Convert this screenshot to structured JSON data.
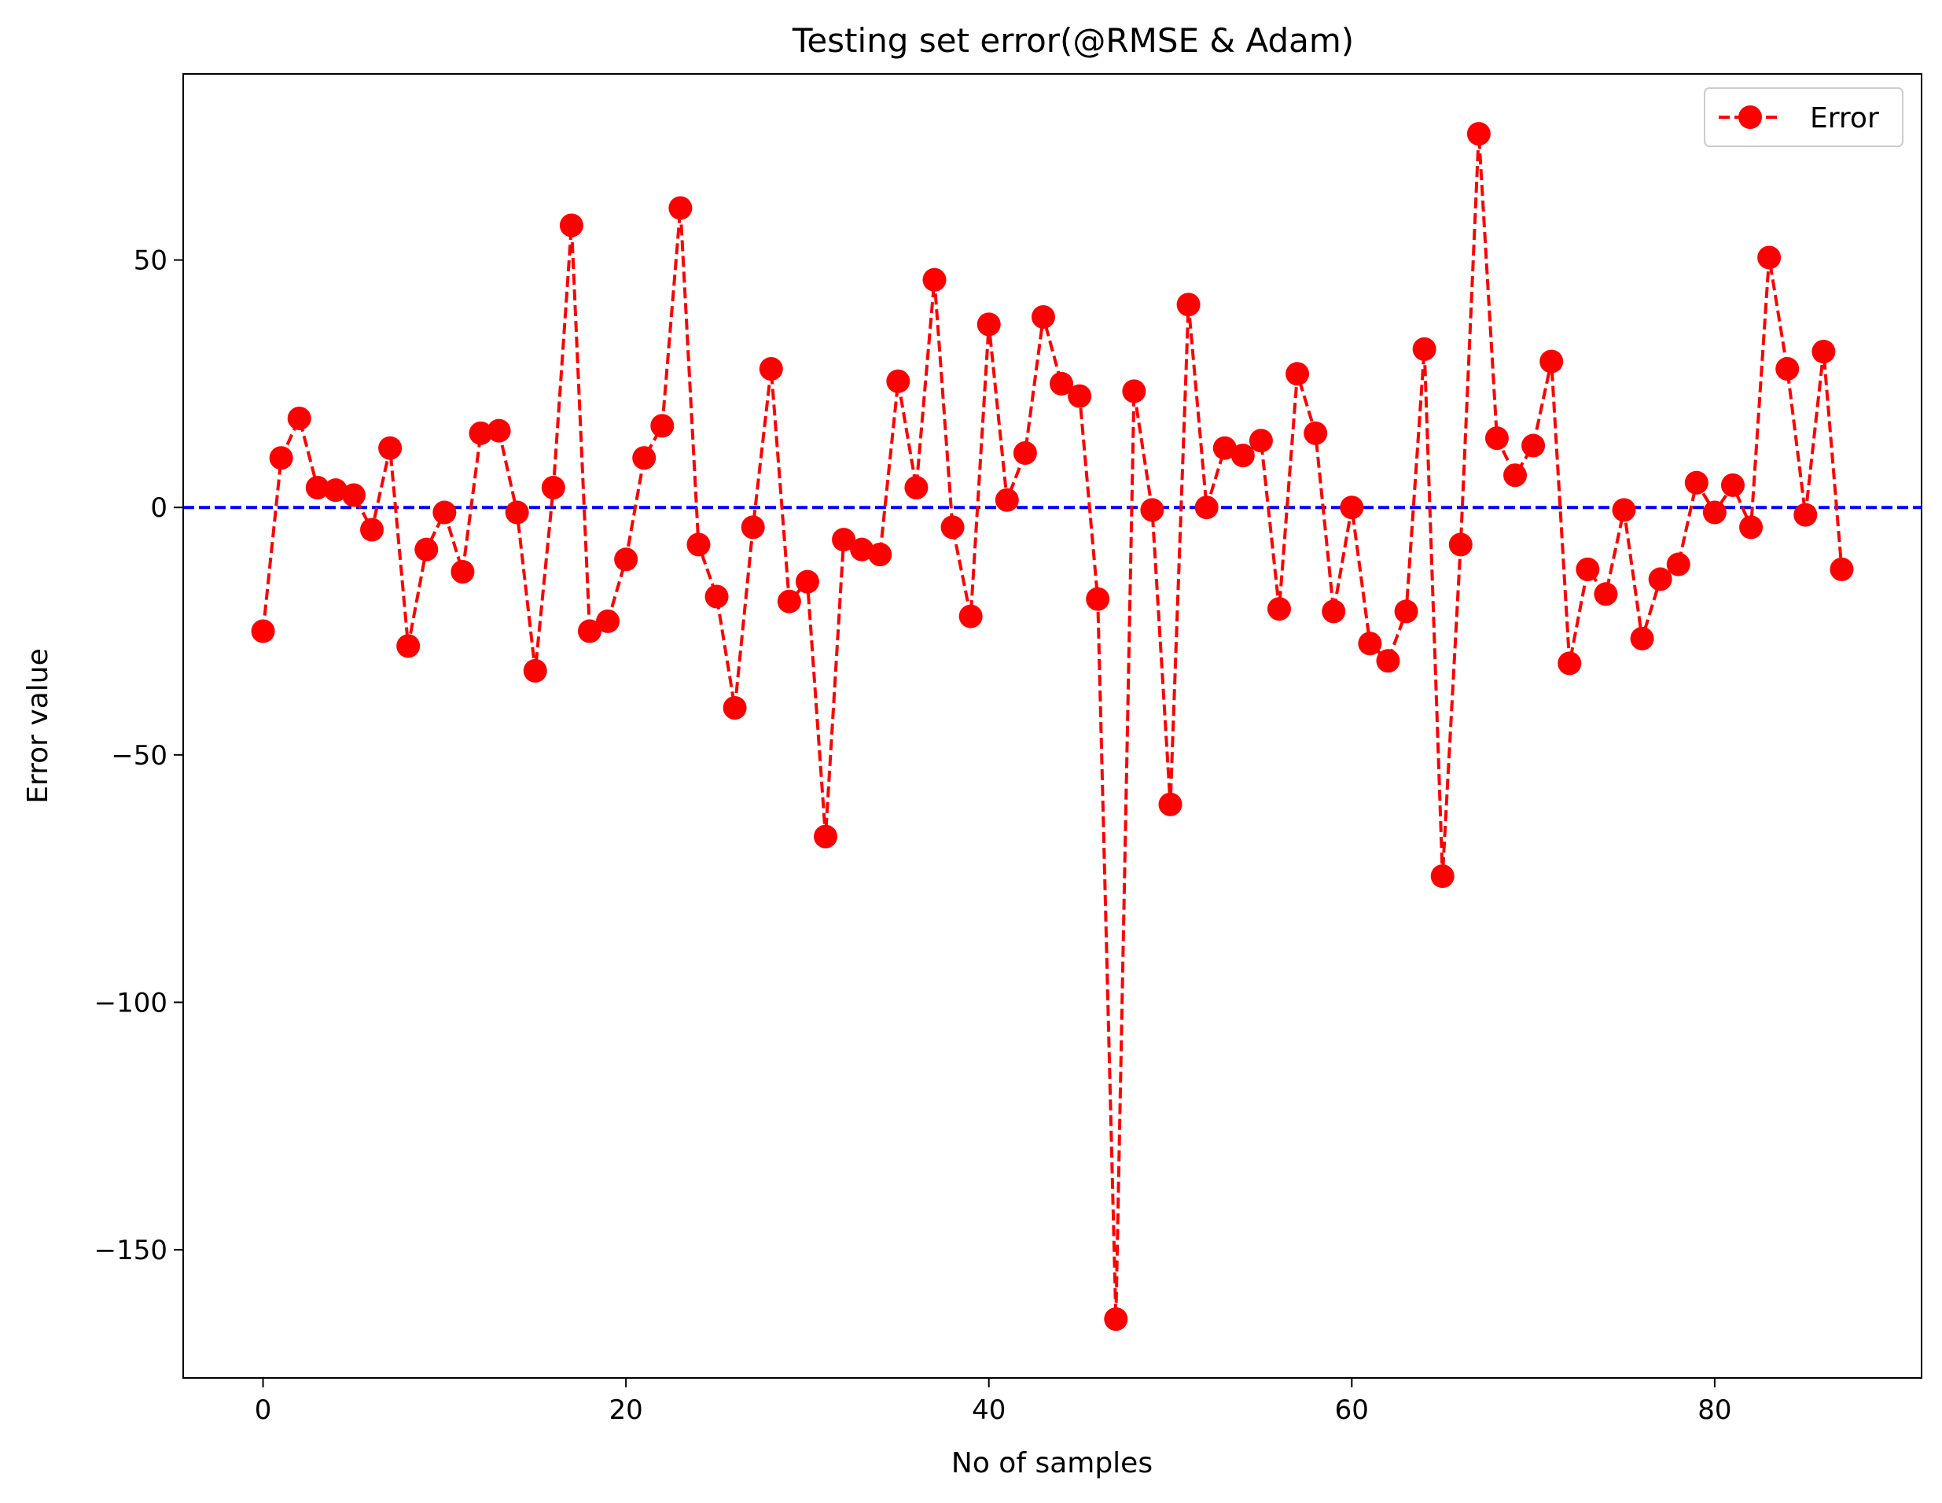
{
  "chart_data": {
    "type": "line",
    "title": "Testing set error(@RMSE & Adam)",
    "xlabel": "No of samples",
    "ylabel": "Error value",
    "xlim": [
      -4.4,
      91.4
    ],
    "ylim": [
      -175.9,
      87.6
    ],
    "xticks": [
      0,
      20,
      40,
      60,
      80
    ],
    "yticks": [
      -150,
      -100,
      -50,
      0,
      50
    ],
    "xtick_labels": [
      "0",
      "20",
      "40",
      "60",
      "80"
    ],
    "ytick_labels": [
      "−150",
      "−100",
      "−50",
      "0",
      "50"
    ],
    "grid": false,
    "legend_position": "top-right",
    "series": [
      {
        "name": "Error",
        "color": "#ff0000",
        "line_style": "dashed",
        "marker": "circle",
        "x": [
          0,
          1,
          2,
          3,
          4,
          5,
          6,
          7,
          8,
          9,
          10,
          11,
          12,
          13,
          14,
          15,
          16,
          17,
          18,
          19,
          20,
          21,
          22,
          23,
          24,
          25,
          26,
          27,
          28,
          29,
          30,
          31,
          32,
          33,
          34,
          35,
          36,
          37,
          38,
          39,
          40,
          41,
          42,
          43,
          44,
          45,
          46,
          47,
          48,
          49,
          50,
          51,
          52,
          53,
          54,
          55,
          56,
          57,
          58,
          59,
          60,
          61,
          62,
          63,
          64,
          65,
          66,
          67,
          68,
          69,
          70,
          71,
          72,
          73,
          74,
          75,
          76,
          77,
          78,
          79,
          80,
          81,
          82,
          83,
          84,
          85,
          86,
          87
        ],
        "values": [
          -25,
          10,
          18,
          4,
          3.5,
          2.5,
          -4.5,
          12,
          -28,
          -8.5,
          -1,
          -13,
          15,
          15.5,
          -1,
          -33,
          4,
          57,
          -25,
          -23,
          -10.5,
          10,
          16.5,
          60.5,
          -7.5,
          -18,
          -40.5,
          -4,
          28,
          -19,
          -15,
          -66.5,
          -6.5,
          -8.5,
          -9.5,
          25.5,
          4,
          46,
          -4,
          -22,
          37,
          1.5,
          11,
          38.5,
          25,
          22.5,
          -18.5,
          -164,
          23.5,
          -0.5,
          -60,
          41,
          0,
          12,
          10.5,
          13.5,
          -20.5,
          27,
          15,
          -21,
          0,
          -27.5,
          -31,
          -21,
          32,
          -74.5,
          -7.5,
          75.5,
          14,
          6.5,
          12.5,
          29.5,
          -31.5,
          -12.5,
          -17.5,
          -0.5,
          -26.5,
          -14.5,
          -11.5,
          5,
          -1,
          4.5,
          -4,
          50.5,
          28,
          -1.5,
          31.5,
          -12.5
        ]
      },
      {
        "name": "",
        "role": "zero-reference-line",
        "color": "#0000ff",
        "line_style": "dashed",
        "y": 0
      }
    ]
  }
}
